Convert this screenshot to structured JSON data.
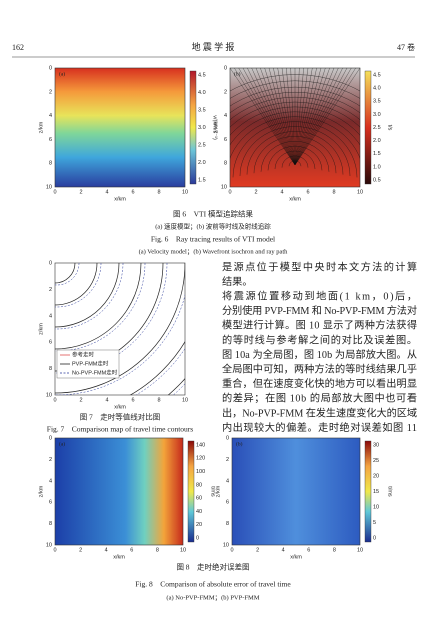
{
  "header": {
    "page": "162",
    "journal": "地 震 学 报",
    "volume": "47 卷"
  },
  "figure6": {
    "panels": [
      {
        "label": "(a)",
        "ylabel": "z/km",
        "xlabel": "x/km",
        "yticks": [
          "0",
          "2",
          "4",
          "6",
          "8",
          "10"
        ],
        "xticks": [
          "0",
          "2",
          "4",
          "6",
          "8",
          "10"
        ],
        "colorbar_ticks": [
          "4.5",
          "4.0",
          "3.5",
          "3.0",
          "2.5",
          "2.0",
          "1.5"
        ],
        "colorbar_label": "v/(km·s⁻¹)"
      },
      {
        "label": "(b)",
        "ylabel": "z/km",
        "xlabel": "x/km",
        "yticks": [
          "0",
          "2",
          "4",
          "6",
          "8",
          "10"
        ],
        "xticks": [
          "0",
          "2",
          "4",
          "6",
          "8",
          "10"
        ],
        "colorbar_ticks": [
          "4.5",
          "4.0",
          "3.5",
          "3.0",
          "2.5",
          "2.0",
          "1.5",
          "1.0",
          "0.5"
        ],
        "colorbar_label": "t/s"
      }
    ],
    "caption_cn": "图 6　VTI 模型追踪结果",
    "subcaption_cn": "(a) 速度模型；(b) 波前等时线及射线追踪",
    "caption_en": "Fig. 6　Ray tracing results of VTI model",
    "subcaption_en": "(a) Velocity model；(b) Wavefront isochron and ray path"
  },
  "figure7": {
    "ylabel": "z/km",
    "xlabel": "x/km",
    "yticks": [
      "0",
      "2",
      "4",
      "6",
      "8",
      "10"
    ],
    "xticks": [
      "0",
      "2",
      "4",
      "6",
      "8",
      "10"
    ],
    "legend": [
      "参考走时",
      "PVP-FMM走时",
      "No-PVP-FMM走时"
    ],
    "caption_cn": "图 7　走时等值线对比图",
    "caption_en": "Fig. 7　Comparison map of travel time contours"
  },
  "body_text": [
    "是源点位于模型中央时本文方法的计算",
    "结果。",
    "将震源位置移动到地面(1 km，0)后，",
    "分别使用 PVP-FMM 和 No-PVP-FMM 方法对",
    "模型进行计算。图 10 显示了两种方法获得",
    "的等时线与参考解之间的对比及误差图。",
    "图 10a 为全局图，图 10b 为局部放大图。从",
    "全局图中可知，两种方法的等时线结果几乎",
    "重合，但在速度变化快的地方可以看出明显",
    "的差异；在图 10b 的局部放大图中也可看",
    "出，No-PVP-FMM 在发生速度变化大的区域",
    "内出现较大的偏差。走时绝对误差如图 11"
  ],
  "figure8": {
    "panels": [
      {
        "label": "(a)",
        "ylabel": "z/km",
        "xlabel": "x/km",
        "yticks": [
          "0",
          "2",
          "4",
          "6",
          "8",
          "10"
        ],
        "xticks": [
          "0",
          "2",
          "4",
          "6",
          "8",
          "10"
        ],
        "colorbar_ticks": [
          "140",
          "120",
          "100",
          "80",
          "60",
          "40",
          "20",
          "0"
        ],
        "colorbar_label": "t/ms"
      },
      {
        "label": "(b)",
        "ylabel": "z/km",
        "xlabel": "x/km",
        "yticks": [
          "0",
          "2",
          "4",
          "6",
          "8",
          "10"
        ],
        "xticks": [
          "0",
          "2",
          "4",
          "6",
          "8",
          "10"
        ],
        "colorbar_ticks": [
          "30",
          "25",
          "20",
          "15",
          "10",
          "5",
          "0"
        ],
        "colorbar_label": "t/ms"
      }
    ],
    "caption_cn": "图 8　走时绝对误差图",
    "caption_en": "Fig. 8　Comparison of absolute error of travel time",
    "subcaption_en": "(a) No-PVP-FMM；(b) PVP-FMM"
  }
}
